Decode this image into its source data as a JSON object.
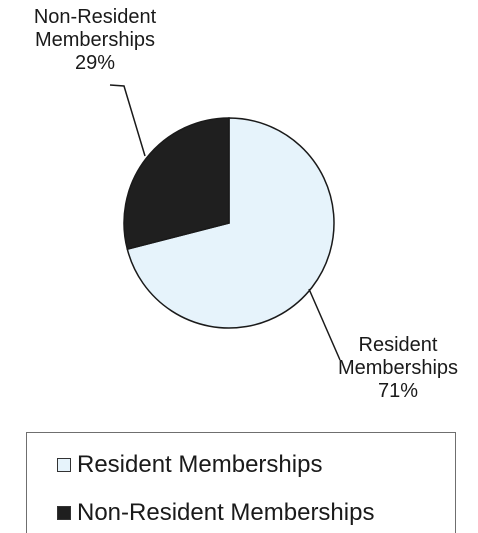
{
  "chart_data": {
    "type": "pie",
    "title": "",
    "categories": [
      "Resident Memberships",
      "Non-Resident Memberships"
    ],
    "values": [
      71,
      29
    ],
    "slices": [
      {
        "label": "Resident Memberships",
        "value": 71,
        "data_label_line1": "Resident",
        "data_label_line2": "Memberships",
        "percent": "71%",
        "color": "#e6f3fb"
      },
      {
        "label": "Non-Resident Memberships",
        "value": 29,
        "data_label_line1": "Non-Resident",
        "data_label_line2": "Memberships",
        "percent": "29%",
        "color": "#1f1f1f"
      }
    ],
    "legend": {
      "placement": "bottom",
      "entries": [
        "Resident Memberships",
        "Non-Resident Memberships"
      ]
    },
    "start_angle_deg": 0,
    "direction": "clockwise",
    "outline_color": "#1a1a1a",
    "leader_color": "#1a1a1a"
  }
}
